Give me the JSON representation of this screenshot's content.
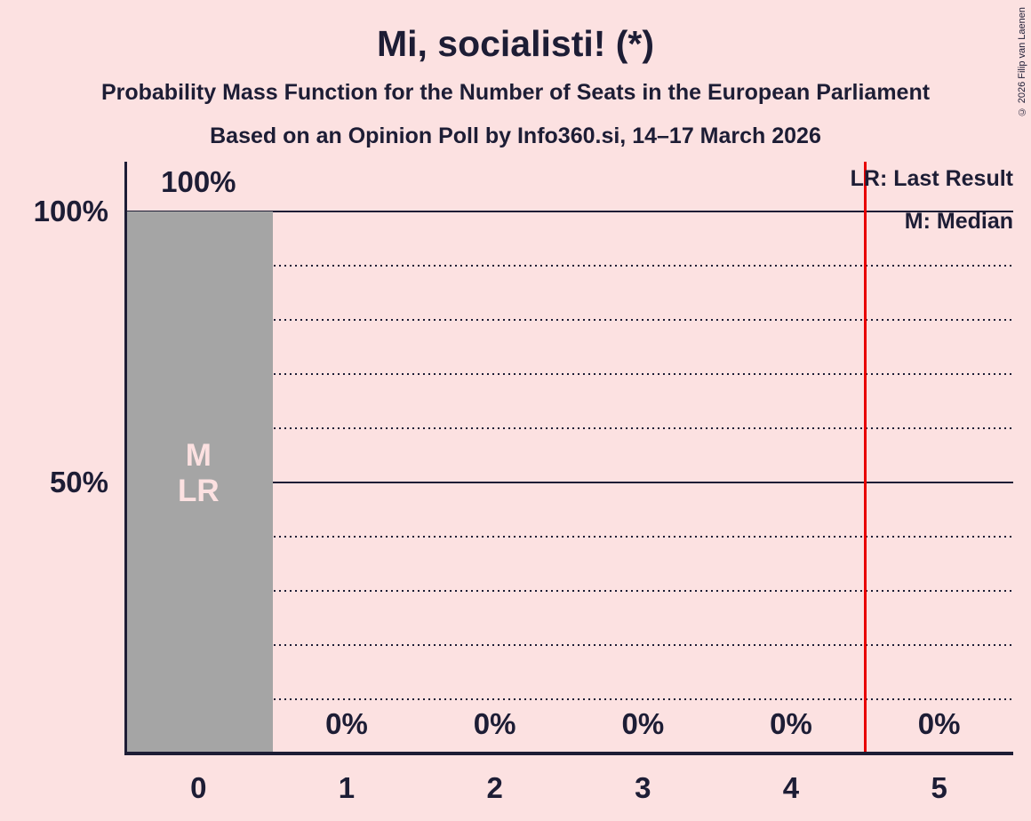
{
  "title": "Mi, socialisti! (*)",
  "subtitle": "Probability Mass Function for the Number of Seats in the European Parliament",
  "poll_line": "Based on an Opinion Poll by Info360.si, 14–17 March 2026",
  "copyright": "© 2026 Filip van Laenen",
  "legend": {
    "last_result": "LR: Last Result",
    "median": "M: Median"
  },
  "colors": {
    "background": "#fce1e1",
    "bar": "#a5a5a5",
    "text": "#1d1d35",
    "red_line": "#e80000",
    "in_bar_text": "#fce1e1"
  },
  "chart_data": {
    "type": "bar",
    "title": "Mi, socialisti! (*)",
    "categories": [
      "0",
      "1",
      "2",
      "3",
      "4",
      "5"
    ],
    "values": [
      100,
      0,
      0,
      0,
      0,
      0
    ],
    "bar_value_labels": [
      "100%",
      "0%",
      "0%",
      "0%",
      "0%",
      "0%"
    ],
    "in_bar_annotations": [
      [
        "M",
        "LR"
      ],
      [],
      [],
      [],
      [],
      []
    ],
    "median_seats": "0",
    "last_result_seats": "0",
    "red_line_x": 4.5,
    "xlabel": "",
    "ylabel": "",
    "ylim": [
      0,
      100
    ],
    "y_axis_ticks": [
      {
        "label": "100%",
        "value": 100
      },
      {
        "label": "50%",
        "value": 50
      }
    ],
    "solid_gridlines": [
      100,
      50
    ],
    "dotted_gridlines": [
      90,
      80,
      70,
      60,
      40,
      30,
      20,
      10
    ],
    "grid": "on",
    "legend_position": "top-right"
  }
}
